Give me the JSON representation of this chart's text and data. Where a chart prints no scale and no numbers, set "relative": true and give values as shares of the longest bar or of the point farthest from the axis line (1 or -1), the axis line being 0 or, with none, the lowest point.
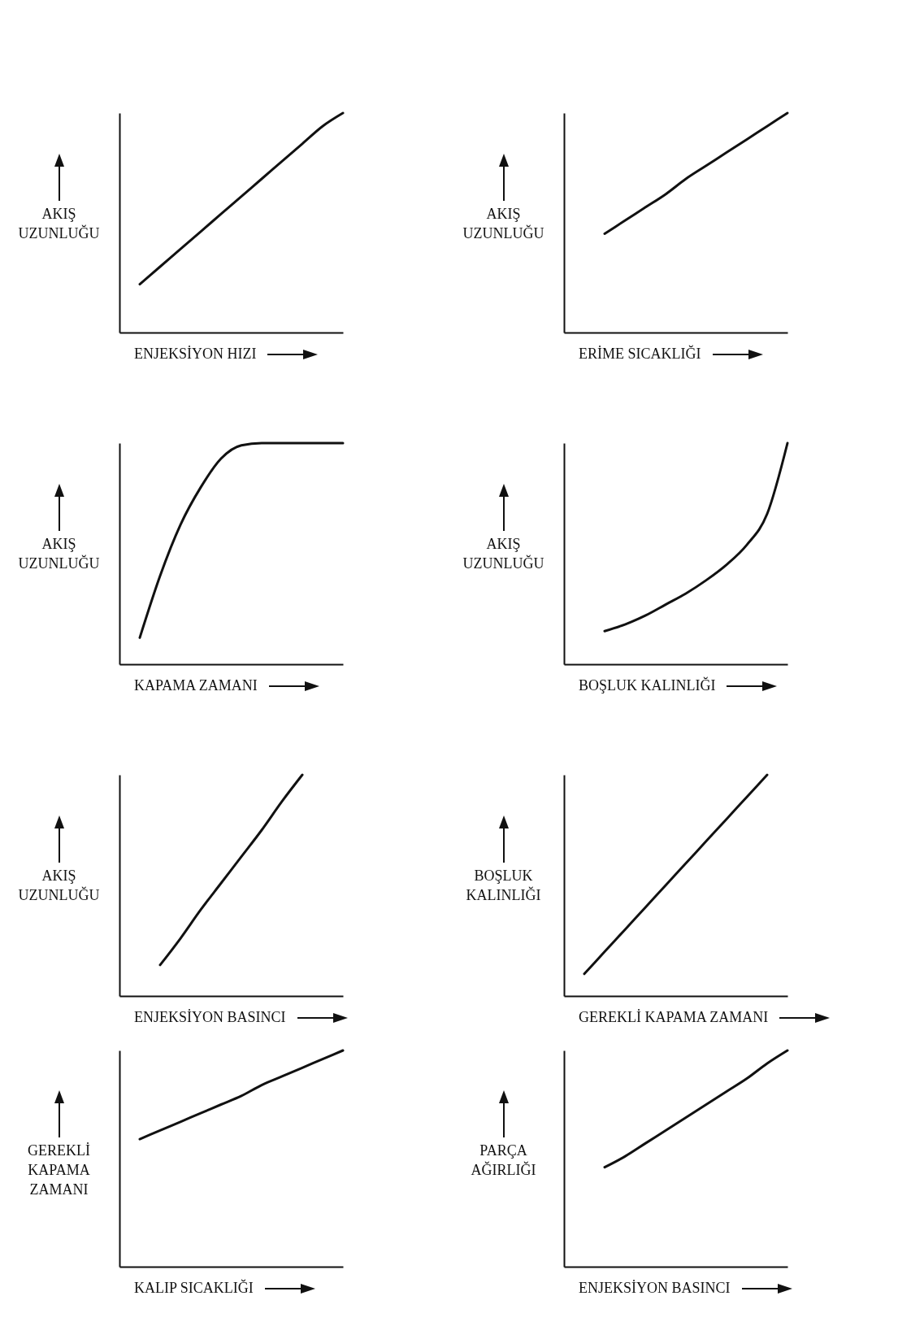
{
  "chart_data": [
    {
      "type": "line",
      "relative": true,
      "tick_labels": false,
      "xlabel": "ENJEKSİYON HIZI",
      "ylabel": "AKIŞ UZUNLUĞU",
      "categories": [
        null,
        null,
        null,
        null,
        null,
        null,
        null,
        null,
        null,
        null,
        null,
        null
      ],
      "series": [
        {
          "color": "#111111",
          "values": [
            null,
            0.22,
            0.3,
            0.38,
            0.46,
            0.54,
            0.62,
            0.7,
            0.78,
            0.86,
            0.94,
            1.0
          ]
        }
      ]
    },
    {
      "type": "line",
      "relative": true,
      "tick_labels": false,
      "xlabel": "ERİME SICAKLIĞI",
      "ylabel": "AKIŞ UZUNLUĞU",
      "categories": [
        null,
        null,
        null,
        null,
        null,
        null,
        null,
        null,
        null,
        null,
        null,
        null
      ],
      "series": [
        {
          "color": "#111111",
          "values": [
            null,
            null,
            0.45,
            0.51,
            0.57,
            0.63,
            0.7,
            0.76,
            0.82,
            0.88,
            0.94,
            1.0
          ]
        }
      ]
    },
    {
      "type": "line",
      "relative": true,
      "tick_labels": false,
      "xlabel": "KAPAMA ZAMANI",
      "ylabel": "AKIŞ UZUNLUĞU",
      "categories": [
        null,
        null,
        null,
        null,
        null,
        null,
        null,
        null,
        null,
        null,
        null,
        null
      ],
      "series": [
        {
          "color": "#111111",
          "values": [
            null,
            0.12,
            0.4,
            0.63,
            0.8,
            0.93,
            0.99,
            1.0,
            1.0,
            1.0,
            1.0,
            1.0
          ]
        }
      ]
    },
    {
      "type": "line",
      "relative": true,
      "tick_labels": false,
      "xlabel": "BOŞLUK KALINLIĞI",
      "ylabel": "AKIŞ UZUNLUĞU",
      "categories": [
        null,
        null,
        null,
        null,
        null,
        null,
        null,
        null,
        null,
        null,
        null,
        null
      ],
      "series": [
        {
          "color": "#111111",
          "values": [
            null,
            null,
            0.15,
            0.18,
            0.22,
            0.27,
            0.32,
            0.38,
            0.45,
            0.54,
            0.68,
            1.0
          ]
        }
      ]
    },
    {
      "type": "line",
      "relative": true,
      "tick_labels": false,
      "xlabel": "ENJEKSİYON BASINCI",
      "ylabel": "AKIŞ UZUNLUĞU",
      "categories": [
        null,
        null,
        null,
        null,
        null,
        null,
        null,
        null,
        null,
        null,
        null,
        null
      ],
      "series": [
        {
          "color": "#111111",
          "values": [
            null,
            null,
            0.14,
            0.26,
            0.39,
            0.51,
            0.63,
            0.75,
            0.88,
            1.0,
            null,
            null
          ]
        }
      ]
    },
    {
      "type": "line",
      "relative": true,
      "tick_labels": false,
      "xlabel": "GEREKLİ KAPAMA ZAMANI",
      "ylabel": "BOŞLUK KALINLIĞI",
      "categories": [
        null,
        null,
        null,
        null,
        null,
        null,
        null,
        null,
        null,
        null,
        null,
        null
      ],
      "series": [
        {
          "color": "#111111",
          "values": [
            null,
            0.1,
            0.2,
            0.3,
            0.4,
            0.5,
            0.6,
            0.7,
            0.8,
            0.9,
            1.0,
            null
          ]
        }
      ]
    },
    {
      "type": "line",
      "relative": true,
      "tick_labels": false,
      "xlabel": "KALIP SICAKLIĞI",
      "ylabel": "GEREKLİ KAPAMA ZAMANI",
      "categories": [
        null,
        null,
        null,
        null,
        null,
        null,
        null,
        null,
        null,
        null,
        null,
        null
      ],
      "series": [
        {
          "color": "#111111",
          "values": [
            null,
            0.59,
            0.63,
            0.67,
            0.71,
            0.75,
            0.79,
            0.84,
            0.88,
            0.92,
            0.96,
            1.0
          ]
        }
      ]
    },
    {
      "type": "line",
      "relative": true,
      "tick_labels": false,
      "xlabel": "ENJEKSİYON BASINCI",
      "ylabel": "PARÇA AĞIRLIĞI",
      "categories": [
        null,
        null,
        null,
        null,
        null,
        null,
        null,
        null,
        null,
        null,
        null,
        null
      ],
      "series": [
        {
          "color": "#111111",
          "values": [
            null,
            null,
            0.46,
            0.51,
            0.57,
            0.63,
            0.69,
            0.75,
            0.81,
            0.87,
            0.94,
            1.0
          ]
        }
      ]
    }
  ]
}
